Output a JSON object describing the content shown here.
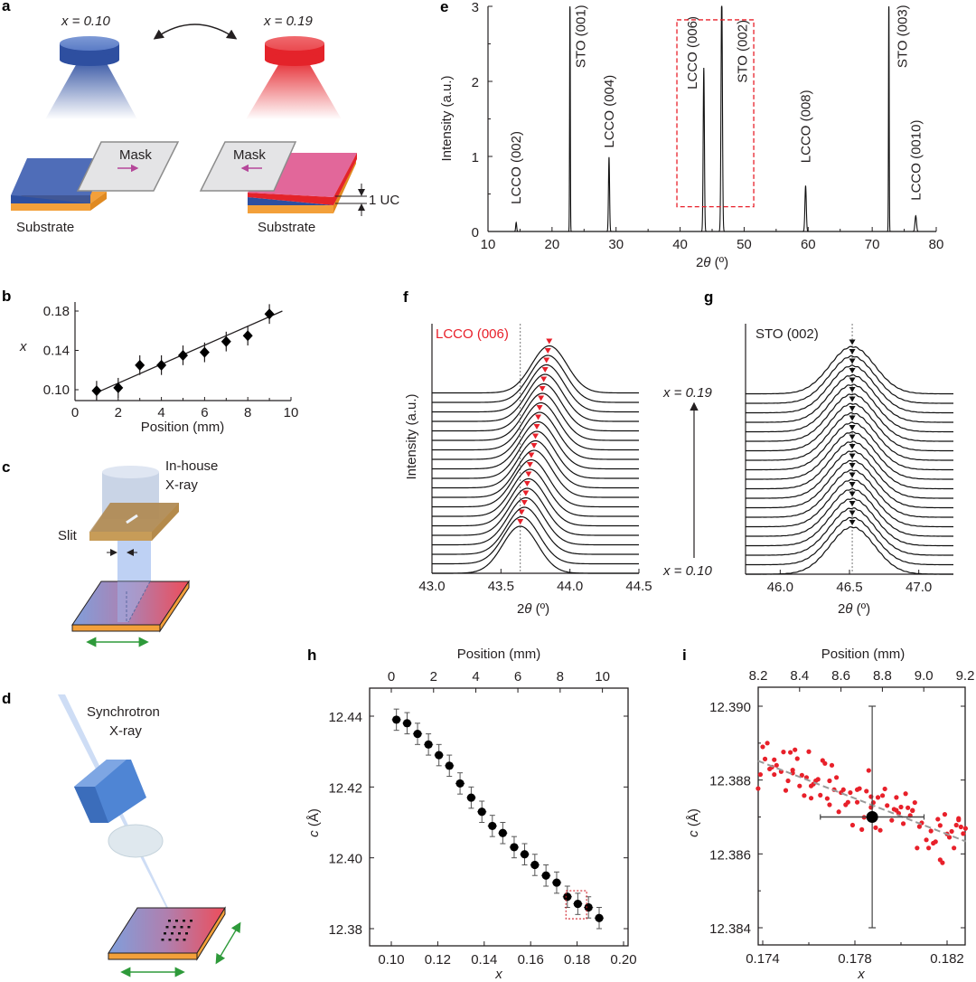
{
  "panels": {
    "a": {
      "label": "a",
      "left_source_label": "x = 0.10",
      "right_source_label": "x = 0.19",
      "mask_label": "Mask",
      "substrate_label": "Substrate",
      "uc_label": "1 UC",
      "colors": {
        "blue": "#2e4fa0",
        "red": "#e4232a",
        "pink": "#e2679a",
        "orange": "#f3a03a",
        "mask": "#e4e4e6",
        "arrow": "#b5479a"
      }
    },
    "b": {
      "label": "b"
    },
    "c": {
      "label": "c",
      "source_label_line1": "In-house",
      "source_label_line2": "X-ray",
      "slit_label": "Slit"
    },
    "d": {
      "label": "d",
      "source_label_line1": "Synchrotron",
      "source_label_line2": "X-ray"
    },
    "e": {
      "label": "e"
    },
    "f": {
      "label": "f"
    },
    "g": {
      "label": "g",
      "arrow_top_label": "x = 0.19",
      "arrow_bottom_label": "x = 0.10"
    },
    "h": {
      "label": "h"
    },
    "i": {
      "label": "i"
    }
  },
  "chart_data": [
    {
      "id": "b",
      "type": "scatter",
      "title": "",
      "xlabel": "Position (mm)",
      "ylabel": "x",
      "xlim": [
        0,
        10
      ],
      "ylim": [
        0.09,
        0.19
      ],
      "xticks": [
        "0",
        "2",
        "4",
        "6",
        "8",
        "10"
      ],
      "yticks": [
        "0.10",
        "0.14",
        "0.18"
      ],
      "ytick_values": [
        0.1,
        0.14,
        0.18
      ],
      "series": [
        {
          "name": "measured",
          "marker": "diamond",
          "x": [
            1,
            2,
            3,
            4,
            5,
            6,
            7,
            8,
            9
          ],
          "y": [
            0.099,
            0.102,
            0.125,
            0.125,
            0.135,
            0.138,
            0.149,
            0.155,
            0.177
          ],
          "yerr": [
            0.01,
            0.01,
            0.01,
            0.01,
            0.01,
            0.01,
            0.01,
            0.01,
            0.01
          ]
        },
        {
          "name": "linear fit",
          "type": "line",
          "x": [
            1.1,
            9.6
          ],
          "y": [
            0.098,
            0.18
          ]
        }
      ]
    },
    {
      "id": "e",
      "type": "line",
      "title": "",
      "xlabel": "2θ (º)",
      "ylabel": "Intensity (a.u.)",
      "xlim": [
        10,
        80
      ],
      "ylim": [
        0,
        3
      ],
      "xticks": [
        "10",
        "20",
        "30",
        "40",
        "50",
        "60",
        "70",
        "80"
      ],
      "yticks": [
        "0",
        "1",
        "2",
        "3"
      ],
      "peaks": [
        {
          "label": "LCCO (002)",
          "pos": 14.4,
          "height": 0.12,
          "width": 0.18,
          "color": "red"
        },
        {
          "label": "STO (001)",
          "pos": 22.8,
          "height": 3.2,
          "width": 0.12,
          "color": "black"
        },
        {
          "label": "LCCO (004)",
          "pos": 28.9,
          "height": 0.99,
          "width": 0.2,
          "color": "red"
        },
        {
          "label": "LCCO (006)",
          "pos": 43.7,
          "height": 2.18,
          "width": 0.22,
          "color": "red"
        },
        {
          "label": "STO (002)",
          "pos": 46.5,
          "height": 3.2,
          "width": 0.25,
          "color": "black"
        },
        {
          "label": "LCCO (008)",
          "pos": 59.6,
          "height": 0.61,
          "width": 0.25,
          "color": "red"
        },
        {
          "label": "STO (003)",
          "pos": 72.6,
          "height": 3.2,
          "width": 0.12,
          "color": "black"
        },
        {
          "label": "LCCO (0010)",
          "pos": 76.8,
          "height": 0.21,
          "width": 0.28,
          "color": "red"
        }
      ],
      "highlight_box": {
        "x": [
          39.5,
          51.5
        ],
        "y": [
          0.33,
          2.82
        ]
      }
    },
    {
      "id": "f",
      "type": "line",
      "title": "LCCO (006)",
      "xlabel": "2θ (º)",
      "ylabel": "Intensity (a.u.)",
      "xlim": [
        43.0,
        44.5
      ],
      "xticks": [
        "43.0",
        "43.5",
        "44.0",
        "44.5"
      ],
      "reference_line": 43.64,
      "n_curves": 20,
      "peak_positions": [
        43.64,
        43.65,
        43.67,
        43.68,
        43.69,
        43.7,
        43.71,
        43.72,
        43.74,
        43.75,
        43.76,
        43.77,
        43.78,
        43.79,
        43.8,
        43.81,
        43.82,
        43.83,
        43.84,
        43.85
      ],
      "peak_width_fwhm": 0.3
    },
    {
      "id": "g",
      "type": "line",
      "title": "STO (002)",
      "xlabel": "2θ (º)",
      "xlim": [
        45.75,
        47.25
      ],
      "xticks": [
        "46.0",
        "46.5",
        "47.0"
      ],
      "reference_line": 46.52,
      "n_curves": 20,
      "peak_positions": [
        46.52,
        46.52,
        46.52,
        46.52,
        46.52,
        46.52,
        46.52,
        46.52,
        46.52,
        46.52,
        46.52,
        46.52,
        46.52,
        46.52,
        46.52,
        46.52,
        46.52,
        46.52,
        46.52,
        46.52
      ],
      "peak_width_fwhm": 0.38
    },
    {
      "id": "h",
      "type": "scatter",
      "xlabel": "x",
      "ylabel": "c (Å)",
      "top_xlabel": "Position (mm)",
      "xlim": [
        0.09,
        0.2
      ],
      "ylim": [
        12.375,
        12.448
      ],
      "xticks": [
        "0.10",
        "0.12",
        "0.14",
        "0.16",
        "0.18",
        "0.20"
      ],
      "top_xticks": [
        "0",
        "2",
        "4",
        "6",
        "8",
        "10"
      ],
      "top_xtick_positions_x": [
        0.1,
        0.1182,
        0.1364,
        0.1545,
        0.1727,
        0.1909
      ],
      "yticks": [
        "12.38",
        "12.40",
        "12.42",
        "12.44"
      ],
      "ytick_values": [
        12.38,
        12.4,
        12.42,
        12.44
      ],
      "series": [
        {
          "name": "c-axis lattice constant",
          "x": [
            0.1022,
            0.1068,
            0.1113,
            0.116,
            0.1205,
            0.125,
            0.1296,
            0.1344,
            0.139,
            0.1435,
            0.148,
            0.1529,
            0.1574,
            0.1618,
            0.1666,
            0.1712,
            0.1758,
            0.1803,
            0.1849,
            0.1895
          ],
          "y": [
            12.439,
            12.438,
            12.435,
            12.432,
            12.429,
            12.426,
            12.421,
            12.417,
            12.413,
            12.409,
            12.407,
            12.403,
            12.401,
            12.398,
            12.395,
            12.393,
            12.389,
            12.387,
            12.386,
            12.383
          ],
          "yerr": 0.003,
          "xerr": 0.002
        }
      ],
      "highlight_box": {
        "x": [
          0.1752,
          0.1841
        ],
        "y": [
          12.3828,
          12.3907
        ]
      }
    },
    {
      "id": "i",
      "type": "scatter",
      "xlabel": "x",
      "ylabel": "c (Å)",
      "top_xlabel": "Position (mm)",
      "xlim": [
        0.1738,
        0.1828
      ],
      "ylim": [
        12.3835,
        12.3905
      ],
      "xticks": [
        "0.174",
        "0.178",
        "0.182"
      ],
      "xtick_values": [
        0.174,
        0.178,
        0.182
      ],
      "top_xticks": [
        "8.2",
        "8.4",
        "8.6",
        "8.8",
        "9.0",
        "9.2"
      ],
      "yticks": [
        "12.384",
        "12.386",
        "12.388",
        "12.390"
      ],
      "ytick_values": [
        12.384,
        12.386,
        12.388,
        12.39
      ],
      "big_point": {
        "x": 0.17875,
        "y": 12.387,
        "xerr": 0.00225,
        "yerr": 0.003
      },
      "fit_line": {
        "x": [
          0.1738,
          0.1828
        ],
        "y": [
          12.38852,
          12.38634
        ]
      },
      "scatter": {
        "x": [
          0.1738,
          0.1739,
          0.174,
          0.1742,
          0.1741,
          0.1743,
          0.1744,
          0.1745,
          0.1745,
          0.1746,
          0.1748,
          0.1749,
          0.175,
          0.1751,
          0.1752,
          0.1753,
          0.1753,
          0.1754,
          0.1755,
          0.1756,
          0.1757,
          0.1758,
          0.1759,
          0.176,
          0.1761,
          0.1761,
          0.1762,
          0.1763,
          0.1764,
          0.1765,
          0.1766,
          0.1767,
          0.1768,
          0.1769,
          0.1769,
          0.177,
          0.1771,
          0.1772,
          0.1773,
          0.1774,
          0.1775,
          0.1776,
          0.1777,
          0.1778,
          0.1779,
          0.1781,
          0.1781,
          0.1782,
          0.1783,
          0.1784,
          0.1785,
          0.1786,
          0.1787,
          0.1787,
          0.1788,
          0.1789,
          0.179,
          0.1791,
          0.1792,
          0.1793,
          0.1794,
          0.1796,
          0.1797,
          0.1798,
          0.1798,
          0.1799,
          0.18,
          0.1801,
          0.1802,
          0.1803,
          0.1804,
          0.1805,
          0.1805,
          0.1806,
          0.1807,
          0.1808,
          0.1809,
          0.1811,
          0.1812,
          0.1813,
          0.1814,
          0.1815,
          0.1816,
          0.1817,
          0.1817,
          0.1818,
          0.1819,
          0.182,
          0.1821,
          0.1822,
          0.1823,
          0.1824,
          0.1825,
          0.1825,
          0.1826,
          0.1827,
          0.1828
        ],
        "y": [
          12.38777,
          12.38815,
          12.3889,
          12.389,
          12.38857,
          12.3883,
          12.38835,
          12.38855,
          12.38815,
          12.3884,
          12.38823,
          12.38876,
          12.38772,
          12.38798,
          12.38875,
          12.38819,
          12.38827,
          12.38882,
          12.38858,
          12.38784,
          12.38813,
          12.38758,
          12.38807,
          12.38877,
          12.38751,
          12.38784,
          12.38789,
          12.38798,
          12.38802,
          12.38759,
          12.38853,
          12.38845,
          12.3875,
          12.38733,
          12.38798,
          12.3884,
          12.38774,
          12.38807,
          12.38714,
          12.38766,
          12.38774,
          12.38733,
          12.3874,
          12.38766,
          12.38678,
          12.38774,
          12.3874,
          12.38777,
          12.38666,
          12.38699,
          12.3877,
          12.38826,
          12.38726,
          12.38755,
          12.38739,
          12.38671,
          12.38753,
          12.38664,
          12.38758,
          12.38776,
          12.38731,
          12.38691,
          12.38721,
          12.38718,
          12.38753,
          12.3871,
          12.38727,
          12.38682,
          12.38763,
          12.38725,
          12.38704,
          12.38717,
          12.38718,
          12.38739,
          12.38616,
          12.38674,
          12.38684,
          12.38638,
          12.38616,
          12.38662,
          12.38629,
          12.38633,
          12.38694,
          12.38584,
          12.38677,
          12.38576,
          12.38707,
          12.38654,
          12.38645,
          12.38661,
          12.38616,
          12.38678,
          12.38692,
          12.38696,
          12.38673,
          12.38655,
          12.38669
        ]
      }
    }
  ]
}
